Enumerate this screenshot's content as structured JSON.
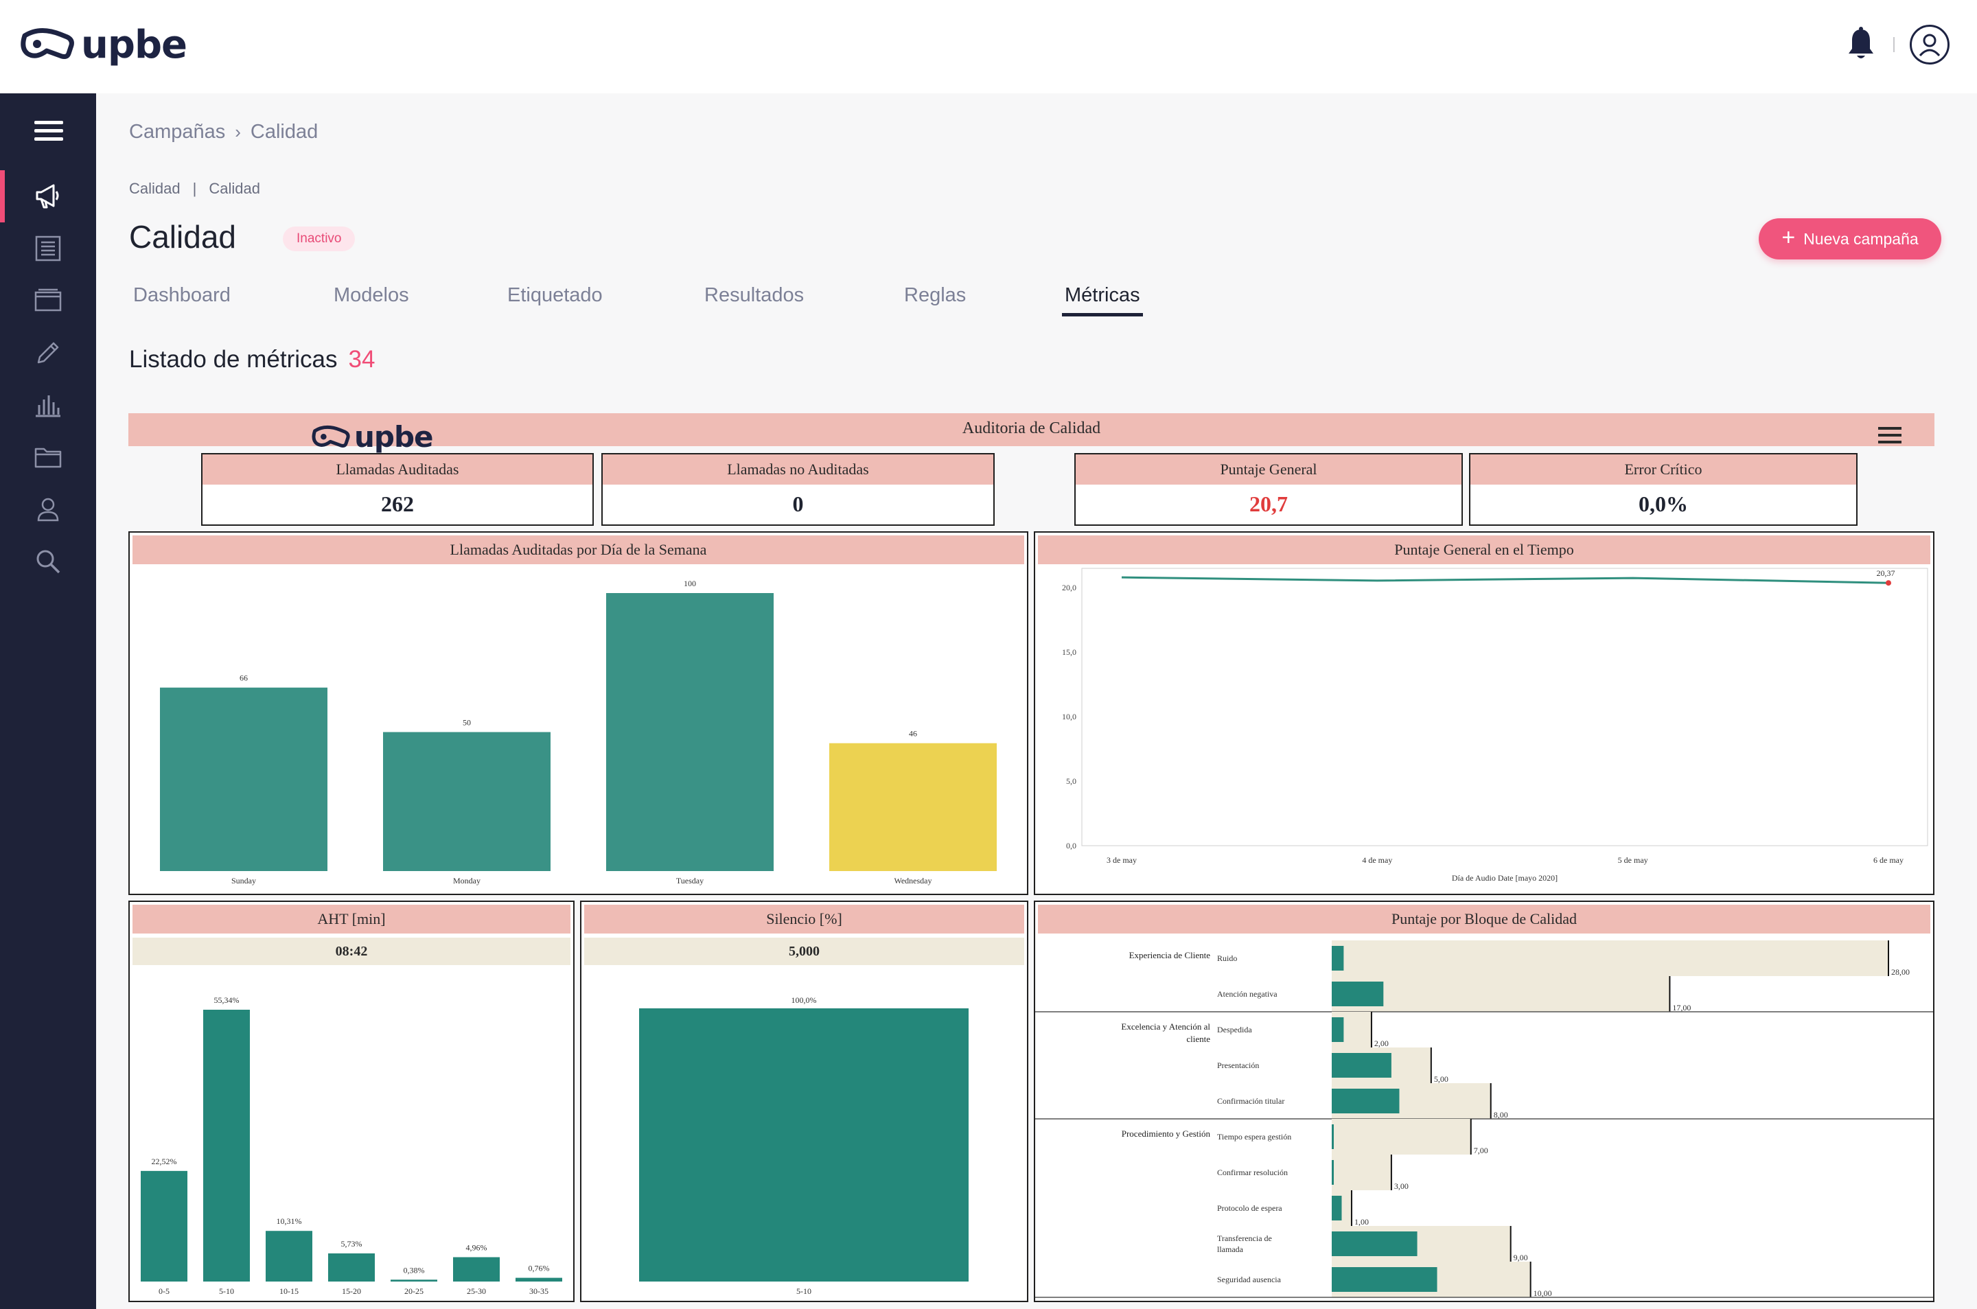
{
  "header": {
    "logo_text": "upbe",
    "icons": [
      "bell-icon",
      "user-circle-icon"
    ]
  },
  "sidebar": {
    "items": [
      {
        "icon": "megaphone-icon",
        "active": true
      },
      {
        "icon": "list-icon",
        "active": false
      },
      {
        "icon": "folder-tray-icon",
        "active": false
      },
      {
        "icon": "pencil-icon",
        "active": false
      },
      {
        "icon": "bar-chart-icon",
        "active": false
      },
      {
        "icon": "folder-icon",
        "active": false
      },
      {
        "icon": "user-icon",
        "active": false
      },
      {
        "icon": "search-icon",
        "active": false
      }
    ]
  },
  "breadcrumb": {
    "first": "Campañas",
    "second": "Calidad"
  },
  "subcrumb": {
    "first": "Calidad",
    "second": "Calidad"
  },
  "page": {
    "title": "Calidad",
    "status": "Inactivo",
    "new_button": "Nueva campaña"
  },
  "tabs": [
    {
      "label": "Dashboard",
      "active": false
    },
    {
      "label": "Modelos",
      "active": false
    },
    {
      "label": "Etiquetado",
      "active": false
    },
    {
      "label": "Resultados",
      "active": false
    },
    {
      "label": "Reglas",
      "active": false
    },
    {
      "label": "Métricas",
      "active": true
    }
  ],
  "list": {
    "title": "Listado de métricas",
    "count": "34"
  },
  "dashboard": {
    "logo_text": "upbe",
    "title": "Auditoria de Calidad",
    "kpis": [
      {
        "label": "Llamadas Auditadas",
        "value": "262",
        "color": "#1f2330"
      },
      {
        "label": "Llamadas no Auditadas",
        "value": "0",
        "color": "#1f2330"
      },
      {
        "label": "Puntaje General",
        "value": "20,7",
        "color": "#e03c3c"
      },
      {
        "label": "Error Crítico",
        "value": "0,0%",
        "color": "#1f2330"
      }
    ],
    "panels": {
      "calls_by_day": "Llamadas Auditadas por Día de la Semana",
      "score_time": "Puntaje General en el Tiempo",
      "aht": "AHT [min]",
      "aht_value": "08:42",
      "silence": "Silencio [%]",
      "silence_value": "5,000",
      "blocks": "Puntaje por Bloque de Calidad"
    }
  },
  "chart_data": [
    {
      "type": "bar",
      "title": "Llamadas Auditadas por Día de la Semana",
      "categories": [
        "Sunday",
        "Monday",
        "Tuesday",
        "Wednesday"
      ],
      "values": [
        66,
        50,
        100,
        46
      ],
      "labels": [
        "66",
        "50",
        "100",
        "46"
      ],
      "colors": [
        "#3a9286",
        "#3a9286",
        "#3a9286",
        "#ecd251"
      ],
      "ylim": [
        0,
        100
      ],
      "grid": false
    },
    {
      "type": "line",
      "title": "Puntaje General en el Tiempo",
      "xlabel": "Día de Audio Date [mayo 2020]",
      "x_ticks": [
        "3 de may",
        "4 de may",
        "5 de may",
        "6 de may"
      ],
      "y_ticks": [
        "0,0",
        "5,0",
        "10,0",
        "15,0",
        "20,0"
      ],
      "ylim": [
        0,
        21.5
      ],
      "series": [
        {
          "values": [
            20.8,
            20.55,
            20.75,
            20.37
          ]
        }
      ],
      "end_label": "20,37",
      "line_color": "#2f8f7e"
    },
    {
      "type": "bar",
      "title": "AHT [min]",
      "categories": [
        "0-5",
        "5-10",
        "10-15",
        "15-20",
        "20-25",
        "25-30",
        "30-35"
      ],
      "values": [
        22.52,
        55.34,
        10.31,
        5.73,
        0.38,
        4.96,
        0.76
      ],
      "labels": [
        "22,52%",
        "55,34%",
        "10,31%",
        "5,73%",
        "0,38%",
        "4,96%",
        "0,76%"
      ],
      "ylim": [
        0,
        55.34
      ],
      "color": "#24877a"
    },
    {
      "type": "bar",
      "title": "Silencio [%]",
      "categories": [
        "5-10"
      ],
      "values": [
        100
      ],
      "labels": [
        "100,0%"
      ],
      "ylim": [
        0,
        100
      ],
      "color": "#24877a"
    },
    {
      "type": "bar",
      "title": "Puntaje por Bloque de Calidad",
      "xlim": [
        0,
        28
      ],
      "groups": [
        {
          "name": "Experiencia de Cliente",
          "lines": [
            "Experiencia de Cliente"
          ],
          "rows": [
            {
              "label": "Ruido",
              "lines": [
                "Ruido"
              ],
              "value": 0.6,
              "target": 28,
              "target_label": "28,00"
            },
            {
              "label": "Atención negativa",
              "lines": [
                "Atención negativa"
              ],
              "value": 2.6,
              "target": 17,
              "target_label": "17,00"
            }
          ]
        },
        {
          "name": "Excelencia y Atención al cliente",
          "lines": [
            "Excelencia y Atención al",
            "cliente"
          ],
          "rows": [
            {
              "label": "Despedida",
              "lines": [
                "Despedida"
              ],
              "value": 0.6,
              "target": 2,
              "target_label": "2,00"
            },
            {
              "label": "Presentación",
              "lines": [
                "Presentación"
              ],
              "value": 3.0,
              "target": 5,
              "target_label": "5,00"
            },
            {
              "label": "Confirmación titular",
              "lines": [
                "Confirmación titular"
              ],
              "value": 3.4,
              "target": 8,
              "target_label": "8,00"
            }
          ]
        },
        {
          "name": "Procedimiento y Gestión",
          "lines": [
            "Procedimiento y Gestión"
          ],
          "rows": [
            {
              "label": "Tiempo espera gestión",
              "lines": [
                "Tiempo espera gestión"
              ],
              "value": 0.0,
              "target": 7,
              "target_label": "7,00"
            },
            {
              "label": "Confirmar resolución",
              "lines": [
                "Confirmar resolución"
              ],
              "value": 0.0,
              "target": 3,
              "target_label": "3,00"
            },
            {
              "label": "Protocolo de espera",
              "lines": [
                "Protocolo de espera"
              ],
              "value": 0.5,
              "target": 1,
              "target_label": "1,00"
            },
            {
              "label": "Transferencia de llamada",
              "lines": [
                "Transferencia de",
                "llamada"
              ],
              "value": 4.3,
              "target": 9,
              "target_label": "9,00"
            },
            {
              "label": "Seguridad ausencia",
              "lines": [
                "Seguridad ausencia"
              ],
              "value": 5.3,
              "target": 10,
              "target_label": "10,00"
            }
          ]
        }
      ],
      "value_color": "#24877a",
      "target_color": "#efeadb"
    }
  ]
}
